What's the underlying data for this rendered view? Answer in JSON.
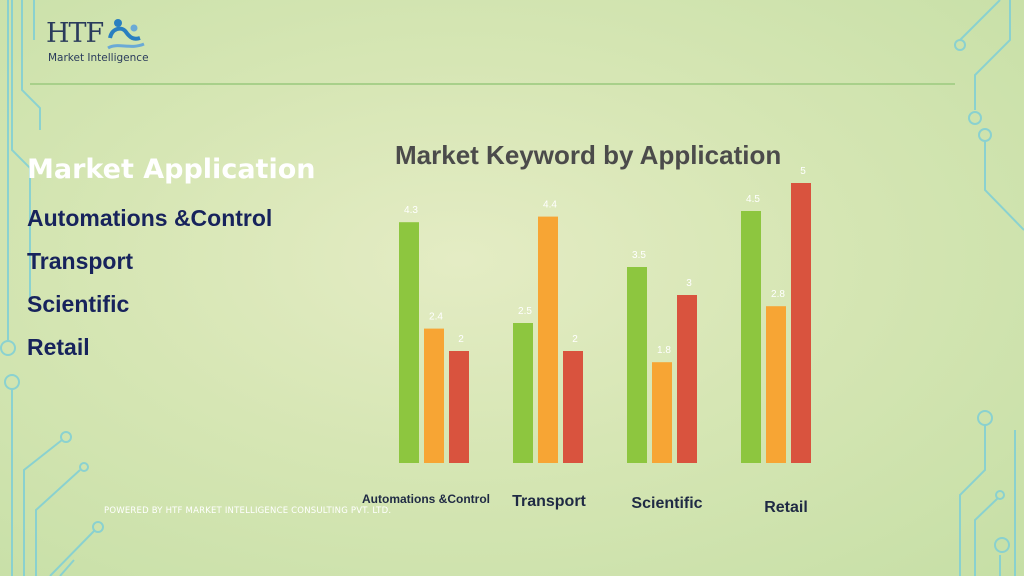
{
  "logo": {
    "mark": "HTF",
    "subtitle": "Market Intelligence"
  },
  "section_title": "Market Application",
  "applications": [
    "Automations &Control",
    "Transport",
    "Scientific",
    "Retail"
  ],
  "footer": "POWERED BY HTF MARKET INTELLIGENCE CONSULTING PVT. LTD.",
  "colors": {
    "green": "#8dc63f",
    "orange": "#f7a534",
    "red": "#d9533e",
    "title_text": "#4b4b4b",
    "list_text": "#17235c"
  },
  "chart_data": {
    "type": "bar",
    "title": "Market Keyword by Application",
    "categories": [
      "Automations &Control",
      "Transport",
      "Scientific",
      "Retail"
    ],
    "series": [
      {
        "values": [
          4.3,
          2.5,
          3.5,
          4.5
        ]
      },
      {
        "values": [
          2.4,
          4.4,
          1.8,
          2.8
        ]
      },
      {
        "values": [
          2,
          2,
          3,
          5
        ]
      }
    ],
    "ylim": [
      0,
      5
    ],
    "grid": false,
    "data_labels": true
  }
}
